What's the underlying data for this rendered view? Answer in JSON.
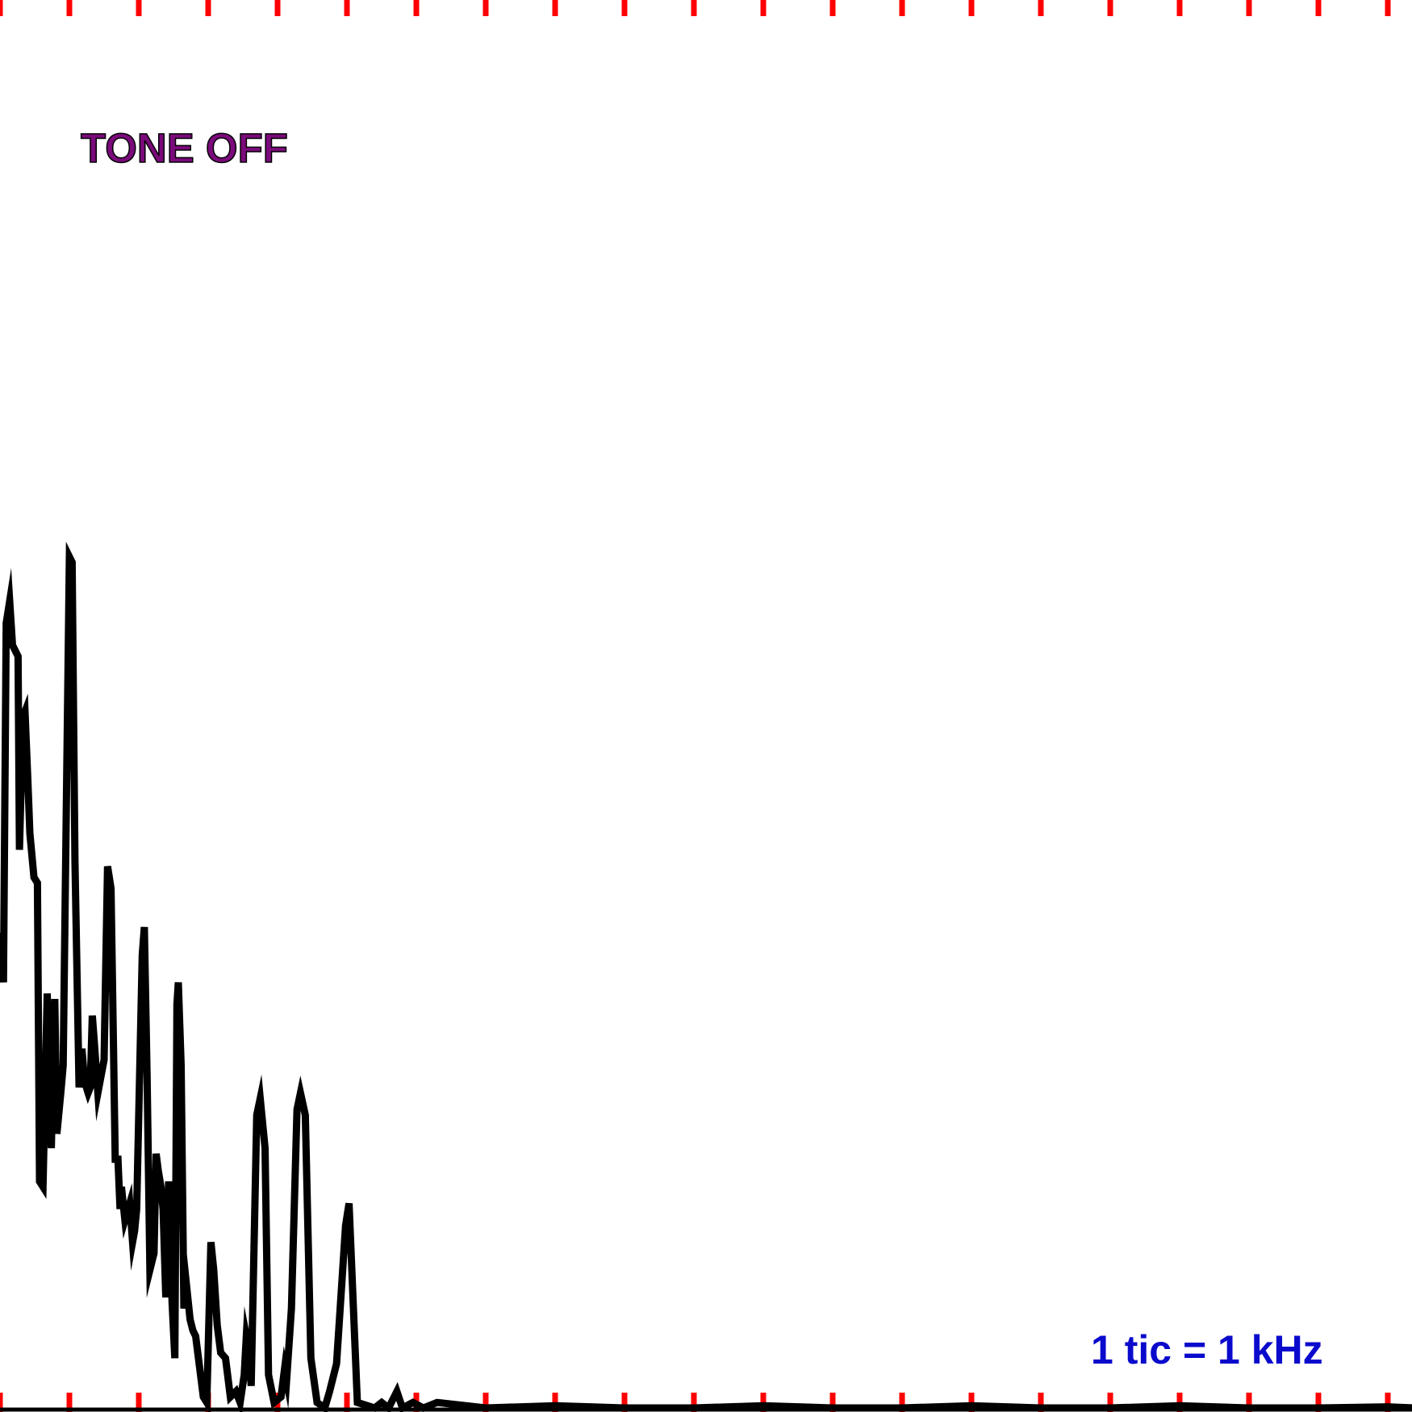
{
  "status_text": "TONE OFF",
  "scale_text": "1 tic = 1 kHz",
  "colors": {
    "background": "#ffffff",
    "trace": "#000000",
    "tick": "#ff0000",
    "status_text": "#7b0a7b",
    "scale_text": "#0a0acd"
  },
  "chart_data": {
    "type": "line",
    "title": "",
    "xlabel": "",
    "ylabel": "",
    "x_unit": "kHz",
    "xlim": [
      0,
      20.4
    ],
    "ylim": [
      0,
      100
    ],
    "grid": false,
    "tick_spacing": 1,
    "tick_count": 21,
    "series": [
      {
        "values": [
          [
            0.0,
            43.0
          ],
          [
            0.05,
            38.5
          ],
          [
            0.09,
            71.0
          ],
          [
            0.14,
            73.0
          ],
          [
            0.18,
            69.0
          ],
          [
            0.26,
            68.0
          ],
          [
            0.28,
            50.5
          ],
          [
            0.33,
            62.5
          ],
          [
            0.36,
            63.0
          ],
          [
            0.4,
            57.0
          ],
          [
            0.43,
            52.0
          ],
          [
            0.49,
            48.0
          ],
          [
            0.54,
            47.5
          ],
          [
            0.57,
            20.5
          ],
          [
            0.62,
            20.0
          ],
          [
            0.68,
            37.5
          ],
          [
            0.74,
            23.5
          ],
          [
            0.79,
            37.0
          ],
          [
            0.82,
            24.8
          ],
          [
            0.88,
            28.8
          ],
          [
            0.91,
            31.0
          ],
          [
            1.0,
            77.0
          ],
          [
            1.04,
            76.5
          ],
          [
            1.08,
            49.5
          ],
          [
            1.14,
            29.0
          ],
          [
            1.18,
            32.5
          ],
          [
            1.22,
            29.5
          ],
          [
            1.27,
            28.5
          ],
          [
            1.3,
            29.0
          ],
          [
            1.33,
            35.5
          ],
          [
            1.36,
            33.0
          ],
          [
            1.41,
            28.5
          ],
          [
            1.5,
            31.5
          ],
          [
            1.55,
            49.0
          ],
          [
            1.6,
            47.0
          ],
          [
            1.66,
            22.5
          ],
          [
            1.7,
            22.5
          ],
          [
            1.73,
            18.0
          ],
          [
            1.75,
            20.0
          ],
          [
            1.8,
            17.0
          ],
          [
            1.87,
            18.5
          ],
          [
            1.91,
            15.0
          ],
          [
            1.94,
            16.0
          ],
          [
            1.97,
            18.0
          ],
          [
            2.05,
            41.0
          ],
          [
            2.08,
            43.5
          ],
          [
            2.12,
            30.0
          ],
          [
            2.16,
            12.5
          ],
          [
            2.22,
            14.0
          ],
          [
            2.25,
            23.0
          ],
          [
            2.28,
            21.5
          ],
          [
            2.32,
            20.0
          ],
          [
            2.35,
            18.0
          ],
          [
            2.39,
            10.0
          ],
          [
            2.43,
            20.5
          ],
          [
            2.48,
            9.5
          ],
          [
            2.52,
            4.5
          ],
          [
            2.55,
            36.5
          ],
          [
            2.57,
            38.5
          ],
          [
            2.61,
            31.0
          ],
          [
            2.65,
            9.0
          ],
          [
            2.69,
            11.0
          ],
          [
            2.74,
            8.0
          ],
          [
            2.78,
            7.0
          ],
          [
            2.82,
            6.5
          ],
          [
            2.93,
            1.0
          ],
          [
            2.98,
            0.5
          ],
          [
            3.04,
            15.0
          ],
          [
            3.08,
            12.5
          ],
          [
            3.13,
            7.5
          ],
          [
            3.18,
            5.0
          ],
          [
            3.25,
            4.5
          ],
          [
            3.32,
            1.0
          ],
          [
            3.4,
            1.5
          ],
          [
            3.46,
            0.5
          ],
          [
            3.52,
            3.0
          ],
          [
            3.55,
            6.5
          ],
          [
            3.58,
            5.5
          ],
          [
            3.62,
            2.0
          ],
          [
            3.7,
            26.5
          ],
          [
            3.75,
            28.0
          ],
          [
            3.82,
            23.5
          ],
          [
            3.87,
            3.0
          ],
          [
            3.95,
            0.5
          ],
          [
            4.05,
            1.0
          ],
          [
            4.1,
            3.5
          ],
          [
            4.13,
            2.5
          ],
          [
            4.2,
            9.0
          ],
          [
            4.28,
            27.0
          ],
          [
            4.33,
            28.5
          ],
          [
            4.4,
            26.5
          ],
          [
            4.48,
            4.5
          ],
          [
            4.57,
            0.5
          ],
          [
            4.68,
            0.0
          ],
          [
            4.75,
            1.5
          ],
          [
            4.85,
            4.0
          ],
          [
            4.98,
            16.5
          ],
          [
            5.03,
            18.5
          ],
          [
            5.15,
            0.5
          ],
          [
            5.4,
            0.0
          ],
          [
            5.5,
            0.5
          ],
          [
            5.6,
            0.0
          ],
          [
            5.72,
            1.5
          ],
          [
            5.8,
            0.0
          ],
          [
            5.95,
            0.5
          ],
          [
            6.1,
            0.0
          ],
          [
            6.3,
            0.5
          ],
          [
            7.0,
            0.0
          ],
          [
            8.0,
            0.2
          ],
          [
            9.0,
            0.0
          ],
          [
            10.0,
            0.0
          ],
          [
            11.0,
            0.2
          ],
          [
            12.0,
            0.0
          ],
          [
            13.0,
            0.0
          ],
          [
            14.0,
            0.2
          ],
          [
            15.0,
            0.0
          ],
          [
            16.0,
            0.0
          ],
          [
            17.0,
            0.2
          ],
          [
            18.0,
            0.0
          ],
          [
            19.0,
            0.0
          ],
          [
            20.0,
            0.1
          ],
          [
            20.4,
            0.0
          ]
        ]
      }
    ]
  }
}
